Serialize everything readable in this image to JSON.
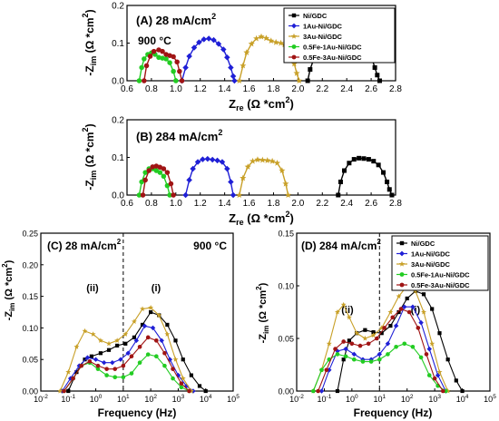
{
  "chart_data": [
    {
      "type": "scatter",
      "panel_label": "(A) 28 mA/cm",
      "panel_label_sup": "2",
      "temperature_label": "900 °C",
      "xlabel_main": "Z",
      "xlabel_sub": "re",
      "xlabel_tail": " (Ω *cm",
      "xlabel_sup": "2",
      "xlabel_end": ")",
      "ylabel_main": "-Z",
      "ylabel_sub": "im",
      "ylabel_tail": " (Ω *cm",
      "ylabel_sup": "2",
      "ylabel_end": ")",
      "xlim": [
        0.6,
        2.8
      ],
      "ylim": [
        0.0,
        0.2
      ],
      "xticks": [
        "0.6",
        "0.8",
        "1.0",
        "1.2",
        "1.4",
        "1.6",
        "1.8",
        "2.0",
        "2.2",
        "2.4",
        "2.6",
        "2.8"
      ],
      "yticks": [
        "0.0",
        "0.1",
        "0.2"
      ],
      "legend_position": "top-right",
      "series": [
        {
          "name": "Ni/GDC",
          "color": "#000000",
          "marker": "square",
          "x": [
            2.08,
            2.1,
            2.13,
            2.17,
            2.21,
            2.25,
            2.29,
            2.33,
            2.37,
            2.41,
            2.45,
            2.49,
            2.53,
            2.56,
            2.59,
            2.61,
            2.63,
            2.65,
            2.67
          ],
          "y": [
            0.0,
            0.03,
            0.058,
            0.078,
            0.092,
            0.101,
            0.104,
            0.102,
            0.098,
            0.093,
            0.089,
            0.087,
            0.085,
            0.08,
            0.07,
            0.055,
            0.035,
            0.015,
            0.0
          ]
        },
        {
          "name": "1Au-Ni/GDC",
          "color": "#1f1fd6",
          "marker": "diamond",
          "x": [
            1.05,
            1.08,
            1.11,
            1.15,
            1.19,
            1.23,
            1.27,
            1.31,
            1.35,
            1.39,
            1.42,
            1.45,
            1.47,
            1.48
          ],
          "y": [
            0.0,
            0.035,
            0.065,
            0.088,
            0.102,
            0.11,
            0.112,
            0.108,
            0.098,
            0.083,
            0.062,
            0.035,
            0.012,
            0.0
          ]
        },
        {
          "name": "3Au-Ni/GDC",
          "color": "#c8a028",
          "marker": "star",
          "x": [
            1.52,
            1.55,
            1.58,
            1.62,
            1.66,
            1.7,
            1.74,
            1.78,
            1.82,
            1.86,
            1.89,
            1.92,
            1.95,
            1.97,
            1.99,
            2.01
          ],
          "y": [
            0.0,
            0.04,
            0.075,
            0.098,
            0.112,
            0.117,
            0.113,
            0.106,
            0.102,
            0.1,
            0.096,
            0.086,
            0.068,
            0.045,
            0.02,
            0.0
          ]
        },
        {
          "name": "0.5Fe-1Au-Ni/GDC",
          "color": "#22cc22",
          "marker": "circle",
          "x": [
            0.7,
            0.72,
            0.74,
            0.77,
            0.8,
            0.83,
            0.86,
            0.89,
            0.92,
            0.95,
            0.98,
            1.0
          ],
          "y": [
            0.0,
            0.035,
            0.058,
            0.07,
            0.074,
            0.07,
            0.062,
            0.06,
            0.058,
            0.048,
            0.025,
            0.0
          ]
        },
        {
          "name": "0.5Fe-3Au-Ni/GDC",
          "color": "#a01414",
          "marker": "circle",
          "x": [
            0.74,
            0.76,
            0.79,
            0.82,
            0.86,
            0.89,
            0.92,
            0.95,
            0.98,
            1.01,
            1.03,
            1.05
          ],
          "y": [
            0.0,
            0.04,
            0.065,
            0.078,
            0.082,
            0.078,
            0.07,
            0.067,
            0.064,
            0.05,
            0.025,
            0.0
          ]
        }
      ]
    },
    {
      "type": "scatter",
      "panel_label": "(B) 284 mA/cm",
      "panel_label_sup": "2",
      "xlabel_main": "Z",
      "xlabel_sub": "re",
      "xlabel_tail": " (Ω *cm",
      "xlabel_sup": "2",
      "xlabel_end": ")",
      "ylabel_main": "-Z",
      "ylabel_sub": "im",
      "ylabel_tail": " (Ω *cm",
      "ylabel_sup": "2",
      "ylabel_end": ")",
      "xlim": [
        0.6,
        2.8
      ],
      "ylim": [
        0.0,
        0.2
      ],
      "xticks": [
        "0.6",
        "0.8",
        "1.0",
        "1.2",
        "1.4",
        "1.6",
        "1.8",
        "2.0",
        "2.2",
        "2.4",
        "2.6",
        "2.8"
      ],
      "yticks": [
        "0.0",
        "0.1",
        "0.2"
      ],
      "series": [
        {
          "name": "Ni/GDC",
          "color": "#000000",
          "marker": "square",
          "x": [
            2.33,
            2.35,
            2.38,
            2.42,
            2.46,
            2.5,
            2.54,
            2.58,
            2.62,
            2.66,
            2.7,
            2.73,
            2.75,
            2.77
          ],
          "y": [
            0.0,
            0.035,
            0.065,
            0.085,
            0.095,
            0.098,
            0.097,
            0.095,
            0.09,
            0.08,
            0.06,
            0.035,
            0.015,
            0.0
          ]
        },
        {
          "name": "1Au-Ni/GDC",
          "color": "#1f1fd6",
          "marker": "diamond",
          "x": [
            1.08,
            1.11,
            1.14,
            1.18,
            1.22,
            1.26,
            1.3,
            1.34,
            1.38,
            1.42,
            1.45,
            1.47
          ],
          "y": [
            0.0,
            0.04,
            0.07,
            0.088,
            0.095,
            0.096,
            0.094,
            0.092,
            0.088,
            0.07,
            0.035,
            0.0
          ]
        },
        {
          "name": "3Au-Ni/GDC",
          "color": "#c8a028",
          "marker": "star",
          "x": [
            1.52,
            1.55,
            1.59,
            1.63,
            1.67,
            1.71,
            1.75,
            1.79,
            1.83,
            1.87,
            1.9,
            1.92
          ],
          "y": [
            0.0,
            0.045,
            0.075,
            0.09,
            0.094,
            0.093,
            0.092,
            0.09,
            0.085,
            0.065,
            0.03,
            0.0
          ]
        },
        {
          "name": "0.5Fe-1Au-Ni/GDC",
          "color": "#22cc22",
          "marker": "circle",
          "x": [
            0.7,
            0.72,
            0.75,
            0.78,
            0.81,
            0.84,
            0.87,
            0.9,
            0.93,
            0.95
          ],
          "y": [
            0.0,
            0.035,
            0.06,
            0.07,
            0.07,
            0.065,
            0.06,
            0.05,
            0.025,
            0.0
          ]
        },
        {
          "name": "0.5Fe-3Au-Ni/GDC",
          "color": "#a01414",
          "marker": "circle",
          "x": [
            0.73,
            0.75,
            0.78,
            0.81,
            0.84,
            0.87,
            0.9,
            0.93,
            0.96,
            0.98
          ],
          "y": [
            0.0,
            0.04,
            0.065,
            0.075,
            0.077,
            0.074,
            0.07,
            0.06,
            0.03,
            0.0
          ]
        }
      ]
    },
    {
      "type": "scatter",
      "panel_label": "(C) 28 mA/cm",
      "panel_label_sup": "2",
      "temperature_label": "900 °C",
      "annotation_left": "(ii)",
      "annotation_right": "(i)",
      "xlabel": "Frequency (Hz)",
      "ylabel_main": "-Z",
      "ylabel_sub": "im",
      "ylabel_tail": " (Ω *cm",
      "ylabel_sup": "2",
      "ylabel_end": ")",
      "x_scale": "log",
      "xlim": [
        0.01,
        100000
      ],
      "ylim": [
        0.0,
        0.25
      ],
      "xticks_base": [
        "10",
        "10",
        "10",
        "10",
        "10",
        "10",
        "10",
        "10"
      ],
      "xticks_exp": [
        "-2",
        "-1",
        "0",
        "1",
        "2",
        "3",
        "4",
        "5"
      ],
      "yticks": [
        "0.00",
        "0.05",
        "0.10",
        "0.15",
        "0.20",
        "0.25"
      ],
      "vline_x": 10,
      "series": [
        {
          "name": "Ni/GDC",
          "color": "#000000",
          "marker": "square",
          "x": [
            0.1,
            0.2,
            0.4,
            0.7,
            1.5,
            3,
            6,
            12,
            25,
            50,
            100,
            200,
            400,
            800,
            1500,
            3000,
            6000,
            10000
          ],
          "y": [
            0.0,
            0.03,
            0.05,
            0.055,
            0.06,
            0.065,
            0.072,
            0.075,
            0.085,
            0.105,
            0.125,
            0.12,
            0.105,
            0.08,
            0.05,
            0.025,
            0.008,
            0.0
          ]
        },
        {
          "name": "1Au-Ni/GDC",
          "color": "#1f1fd6",
          "marker": "diamond",
          "x": [
            0.06,
            0.12,
            0.25,
            0.5,
            1,
            2,
            4,
            8,
            15,
            30,
            60,
            120,
            250,
            500,
            1000,
            2000,
            3500
          ],
          "y": [
            0.0,
            0.02,
            0.04,
            0.053,
            0.05,
            0.045,
            0.045,
            0.05,
            0.06,
            0.08,
            0.103,
            0.1,
            0.08,
            0.05,
            0.025,
            0.008,
            0.0
          ]
        },
        {
          "name": "3Au-Ni/GDC",
          "color": "#c8a028",
          "marker": "star",
          "x": [
            0.05,
            0.1,
            0.2,
            0.4,
            0.8,
            1.5,
            3,
            6,
            12,
            25,
            50,
            100,
            200,
            400,
            800,
            1500,
            3000
          ],
          "y": [
            0.0,
            0.03,
            0.07,
            0.095,
            0.09,
            0.08,
            0.075,
            0.08,
            0.09,
            0.11,
            0.13,
            0.132,
            0.12,
            0.09,
            0.05,
            0.02,
            0.0
          ]
        },
        {
          "name": "0.5Fe-1Au-Ni/GDC",
          "color": "#22cc22",
          "marker": "circle",
          "x": [
            0.07,
            0.15,
            0.3,
            0.6,
            1.2,
            2.5,
            5,
            10,
            20,
            40,
            80,
            160,
            320,
            640,
            1300,
            2500
          ],
          "y": [
            0.0,
            0.02,
            0.04,
            0.045,
            0.035,
            0.025,
            0.022,
            0.022,
            0.028,
            0.045,
            0.058,
            0.055,
            0.04,
            0.02,
            0.006,
            0.0
          ]
        },
        {
          "name": "0.5Fe-3Au-Ni/GDC",
          "color": "#a01414",
          "marker": "circle",
          "x": [
            0.07,
            0.15,
            0.3,
            0.6,
            1.2,
            2.5,
            5,
            10,
            20,
            40,
            80,
            160,
            320,
            640,
            1300,
            2500
          ],
          "y": [
            0.0,
            0.02,
            0.04,
            0.047,
            0.04,
            0.035,
            0.035,
            0.04,
            0.055,
            0.07,
            0.085,
            0.08,
            0.06,
            0.035,
            0.012,
            0.0
          ]
        }
      ]
    },
    {
      "type": "scatter",
      "panel_label": "(D) 284 mA/cm",
      "panel_label_sup": "2",
      "annotation_left": "(ii)",
      "annotation_right": "(i)",
      "xlabel": "Frequency (Hz)",
      "ylabel_main": "-Z",
      "ylabel_sub": "im",
      "ylabel_tail": " (Ω *cm",
      "ylabel_sup": "2",
      "ylabel_end": ")",
      "x_scale": "log",
      "xlim": [
        0.01,
        100000
      ],
      "ylim": [
        0.0,
        0.15
      ],
      "xticks_base": [
        "10",
        "10",
        "10",
        "10",
        "10",
        "10",
        "10",
        "10"
      ],
      "xticks_exp": [
        "-2",
        "-1",
        "0",
        "1",
        "2",
        "3",
        "4",
        "5"
      ],
      "yticks": [
        "0.00",
        "0.05",
        "0.10",
        "0.15"
      ],
      "vline_x": 10,
      "legend_position": "top-right",
      "series": [
        {
          "name": "Ni/GDC",
          "color": "#000000",
          "marker": "square",
          "x": [
            0.3,
            0.5,
            0.8,
            1.5,
            3,
            6,
            12,
            25,
            50,
            100,
            200,
            400,
            800,
            1500,
            3000,
            6000,
            10000
          ],
          "y": [
            0.0,
            0.03,
            0.048,
            0.055,
            0.058,
            0.056,
            0.055,
            0.062,
            0.075,
            0.088,
            0.095,
            0.092,
            0.078,
            0.055,
            0.03,
            0.01,
            0.0
          ]
        },
        {
          "name": "1Au-Ni/GDC",
          "color": "#1f1fd6",
          "marker": "diamond",
          "x": [
            0.08,
            0.15,
            0.3,
            0.6,
            1.2,
            2.5,
            5,
            10,
            20,
            40,
            80,
            160,
            320,
            640,
            1300,
            2500
          ],
          "y": [
            0.0,
            0.02,
            0.038,
            0.04,
            0.035,
            0.03,
            0.03,
            0.035,
            0.045,
            0.062,
            0.08,
            0.08,
            0.065,
            0.04,
            0.015,
            0.0
          ]
        },
        {
          "name": "3Au-Ni/GDC",
          "color": "#c8a028",
          "marker": "star",
          "x": [
            0.04,
            0.08,
            0.15,
            0.3,
            0.5,
            0.8,
            1.5,
            3,
            6,
            12,
            25,
            50,
            100,
            200,
            400,
            800,
            1500,
            3000
          ],
          "y": [
            0.0,
            0.02,
            0.045,
            0.075,
            0.082,
            0.07,
            0.055,
            0.05,
            0.053,
            0.06,
            0.075,
            0.09,
            0.1,
            0.095,
            0.075,
            0.045,
            0.018,
            0.0
          ]
        },
        {
          "name": "0.5Fe-1Au-Ni/GDC",
          "color": "#22cc22",
          "marker": "circle",
          "x": [
            0.04,
            0.08,
            0.15,
            0.3,
            0.6,
            1.2,
            2.5,
            5,
            10,
            20,
            40,
            80,
            160,
            320,
            640,
            1300,
            2500
          ],
          "y": [
            0.0,
            0.02,
            0.03,
            0.035,
            0.033,
            0.03,
            0.028,
            0.028,
            0.03,
            0.035,
            0.042,
            0.045,
            0.042,
            0.032,
            0.015,
            0.005,
            0.0
          ]
        },
        {
          "name": "0.5Fe-3Au-Ni/GDC",
          "color": "#a01414",
          "marker": "circle",
          "x": [
            0.06,
            0.12,
            0.25,
            0.5,
            1,
            2,
            4,
            8,
            15,
            30,
            60,
            120,
            250,
            500,
            1000,
            2000
          ],
          "y": [
            0.0,
            0.02,
            0.04,
            0.047,
            0.045,
            0.043,
            0.045,
            0.05,
            0.06,
            0.07,
            0.078,
            0.075,
            0.06,
            0.035,
            0.012,
            0.0
          ]
        }
      ]
    }
  ]
}
